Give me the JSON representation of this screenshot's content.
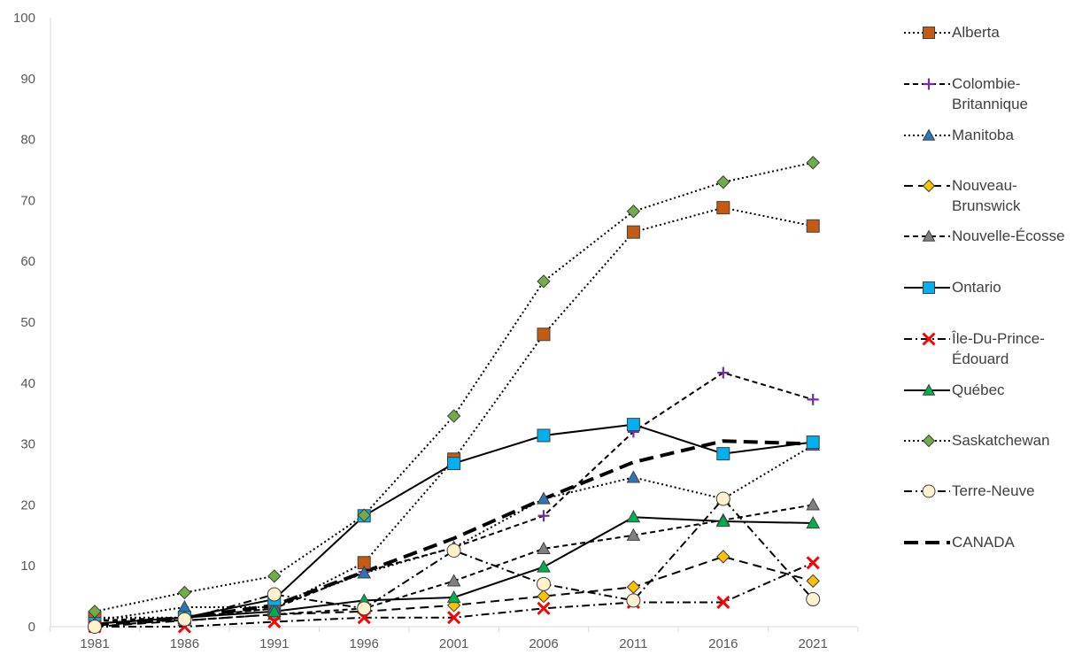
{
  "chart_data": {
    "type": "line",
    "categories": [
      "1981",
      "1986",
      "1991",
      "1996",
      "2001",
      "2006",
      "2011",
      "2016",
      "2021"
    ],
    "ylim": [
      0,
      100
    ],
    "yticks": [
      "0",
      "10",
      "20",
      "30",
      "40",
      "50",
      "60",
      "70",
      "80",
      "90",
      "100"
    ],
    "grid": false,
    "legend_position": "right",
    "series": [
      {
        "name": "Alberta",
        "values": [
          1.5,
          1.5,
          3,
          10.5,
          27.5,
          48,
          64.8,
          68.8,
          65.8
        ],
        "color": "#c55a11",
        "marker": "square",
        "dash": "dotted"
      },
      {
        "name": "Colombie-Britannique",
        "values": [
          1,
          1.5,
          3,
          9,
          13,
          18.2,
          32,
          41.7,
          37.3
        ],
        "color": "#7030a0",
        "marker": "plus",
        "dash": "dashed"
      },
      {
        "name": "Manitoba",
        "values": [
          1,
          3.2,
          3.2,
          8.8,
          13,
          21,
          24.5,
          21,
          29.8
        ],
        "color": "#2e75b6",
        "marker": "triangle",
        "dash": "dotted"
      },
      {
        "name": "Nouveau-Brunswick",
        "values": [
          0,
          1,
          2,
          2.5,
          3.5,
          5,
          6.5,
          11.5,
          7.5
        ],
        "color": "#ffc000",
        "marker": "diamond",
        "dash": "longdash"
      },
      {
        "name": "Nouvelle-Écosse",
        "values": [
          1,
          1,
          2,
          3,
          7.5,
          12.8,
          15,
          17.5,
          20
        ],
        "color": "#808080",
        "marker": "triangle",
        "dash": "dashed"
      },
      {
        "name": "Ontario",
        "values": [
          0.5,
          1.5,
          4.5,
          18.2,
          26.8,
          31.4,
          33.2,
          28.4,
          30.3
        ],
        "color": "#00b0f0",
        "marker": "square",
        "dash": "solid"
      },
      {
        "name": "Île-Du-Prince-Édouard",
        "values": [
          0,
          0,
          0.8,
          1.5,
          1.5,
          3,
          4,
          4,
          10.5
        ],
        "color": "#ff0000",
        "marker": "x",
        "dash": "dashdot"
      },
      {
        "name": "Québec",
        "values": [
          0.5,
          1.5,
          2.5,
          4.3,
          4.8,
          9.8,
          18,
          17.3,
          17
        ],
        "color": "#00b050",
        "marker": "triangle",
        "dash": "solid"
      },
      {
        "name": "Saskatchewan",
        "values": [
          2.5,
          5.6,
          8.3,
          18.3,
          34.6,
          56.7,
          68.2,
          73,
          76.2
        ],
        "color": "#70ad47",
        "marker": "diamond",
        "dash": "dotted"
      },
      {
        "name": "Terre-Neuve",
        "values": [
          0,
          1.2,
          5.3,
          3,
          12.5,
          7,
          4.3,
          21,
          4.5
        ],
        "color": "#fff2cc",
        "marker": "circle",
        "dash": "dashdot"
      },
      {
        "name": "CANADA",
        "values": [
          0.3,
          1.5,
          3.5,
          9,
          14.5,
          21,
          27,
          30.5,
          30
        ],
        "color": "#000000",
        "marker": "none",
        "dash": "boldlongdash"
      }
    ]
  }
}
